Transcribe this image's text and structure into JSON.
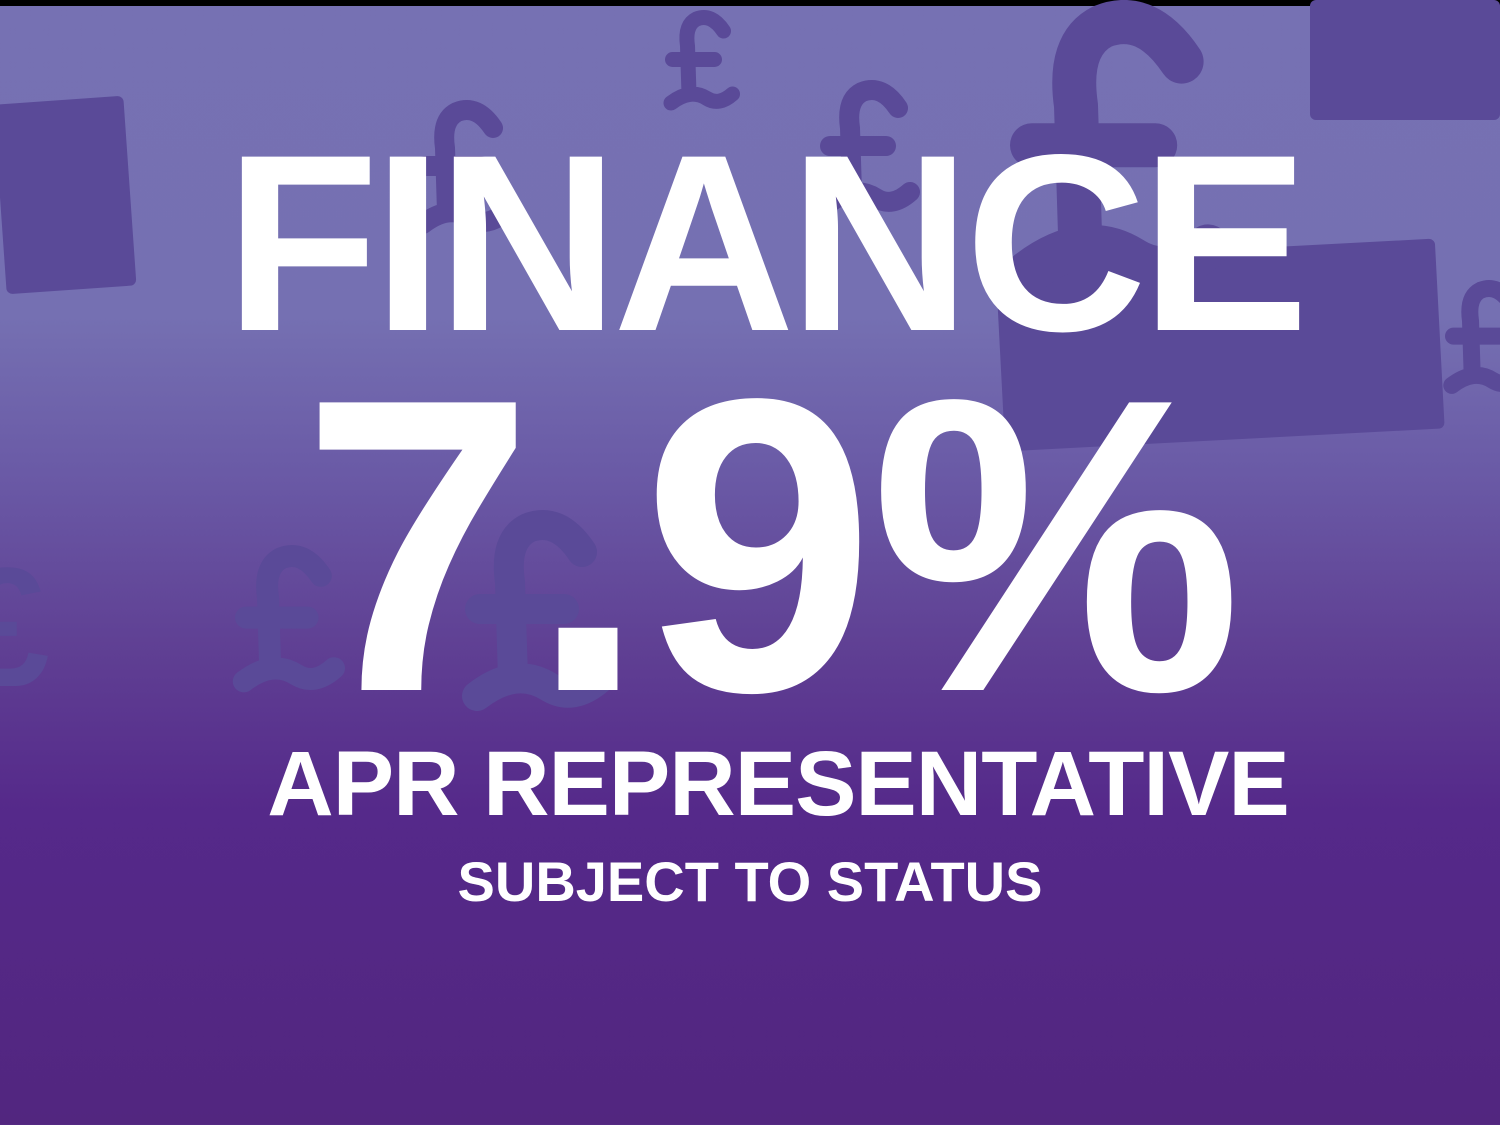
{
  "headline": "FINANCE",
  "rate": "7.9%",
  "rate_label": "APR REPRESENTATIVE",
  "disclaimer": "SUBJECT TO STATUS",
  "decor": {
    "symbol": "£",
    "icon": "pound-sign-icon"
  },
  "colors": {
    "background_top": "#7671b3",
    "background_bottom": "#52267f",
    "text": "#ffffff",
    "decor": "#5a4a98"
  }
}
